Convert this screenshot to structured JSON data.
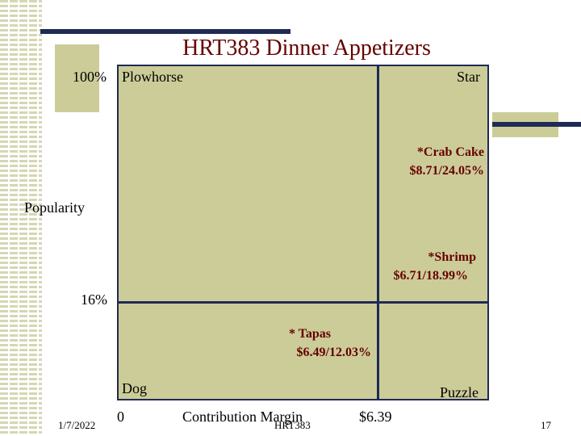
{
  "title": "HRT383 Dinner Appetizers",
  "axis": {
    "y_top": "100%",
    "y_label": "Popularity",
    "y_threshold": "16%",
    "x_zero": "0",
    "x_label": "Contribution Margin",
    "x_threshold": "$6.39"
  },
  "quadrants": {
    "top_left": "Plowhorse",
    "top_right": "Star",
    "bottom_left": "Dog",
    "bottom_right": "Puzzle"
  },
  "items": [
    {
      "name": "*Crab Cake",
      "value": "$8.71/24.05%"
    },
    {
      "name": "*Shrimp",
      "value": "$6.71/18.99%"
    },
    {
      "name": "* Tapas",
      "value": "$6.49/12.03%"
    }
  ],
  "footer": {
    "date": "1/7/2022",
    "course": "HRT383",
    "page": "17"
  },
  "colors": {
    "panel": "#cccc99",
    "lines": "#1f2a55",
    "title": "#660000",
    "item_text": "#660000"
  }
}
